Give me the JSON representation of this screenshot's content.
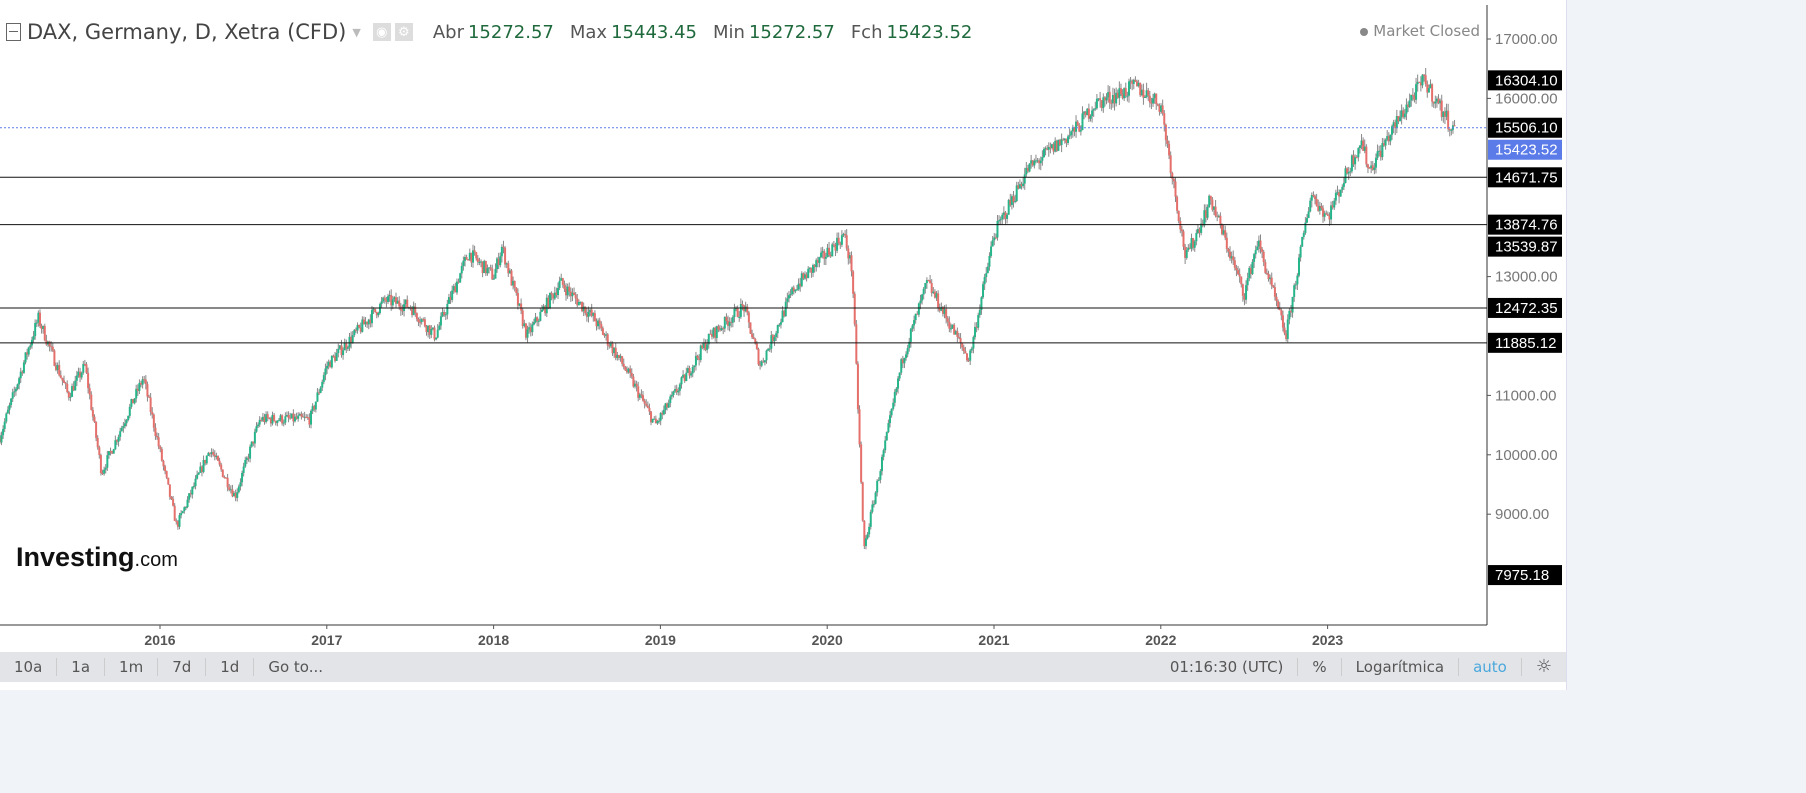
{
  "header": {
    "title": "DAX, Germany, D, Xetra (CFD)",
    "open_label": "Abr",
    "open": "15272.57",
    "high_label": "Max",
    "high": "15443.45",
    "low_label": "Min",
    "low": "15272.57",
    "close_label": "Fch",
    "close": "15423.52",
    "market_status": "Market Closed"
  },
  "logo": {
    "main": "Investing",
    "suffix": ".com"
  },
  "toolbar": {
    "ranges": [
      "10a",
      "1a",
      "1m",
      "7d",
      "1d",
      "Go to..."
    ],
    "time": "01:16:30 (UTC)",
    "percent": "%",
    "log": "Logarítmica",
    "auto": "auto"
  },
  "chart_data": {
    "type": "candlestick",
    "title": "DAX, Germany, D, Xetra (CFD)",
    "x_ticks": [
      "2016",
      "2017",
      "2018",
      "2019",
      "2020",
      "2021",
      "2022",
      "2023"
    ],
    "y_ticks": [
      17000,
      16000,
      13000,
      11000,
      10000,
      9000
    ],
    "ylim": [
      7400,
      17600
    ],
    "xlim": [
      2015.04,
      2023.95
    ],
    "colors": {
      "up": "#26b58a",
      "down": "#e46f6b",
      "current": "#5b7be8"
    },
    "horizontal_lines": [
      14671.75,
      13874.76,
      12472.35,
      11885.12
    ],
    "current_price_line": 15506.1,
    "price_labels": [
      {
        "value": "16304.10",
        "style": "black"
      },
      {
        "value": "15506.10",
        "style": "black"
      },
      {
        "value": "15423.52",
        "style": "blue"
      },
      {
        "value": "14671.75",
        "style": "black"
      },
      {
        "value": "13874.76",
        "style": "black"
      },
      {
        "value": "13539.87",
        "style": "black"
      },
      {
        "value": "12472.35",
        "style": "black"
      },
      {
        "value": "11885.12",
        "style": "black"
      },
      {
        "value": "7975.18",
        "style": "black"
      }
    ],
    "price_path": [
      [
        2015.04,
        10300
      ],
      [
        2015.27,
        12300
      ],
      [
        2015.45,
        11000
      ],
      [
        2015.55,
        11500
      ],
      [
        2015.65,
        9700
      ],
      [
        2015.9,
        11300
      ],
      [
        2016.1,
        8800
      ],
      [
        2016.3,
        10100
      ],
      [
        2016.45,
        9300
      ],
      [
        2016.6,
        10600
      ],
      [
        2016.9,
        10600
      ],
      [
        2017.0,
        11500
      ],
      [
        2017.35,
        12600
      ],
      [
        2017.5,
        12500
      ],
      [
        2017.65,
        12000
      ],
      [
        2017.85,
        13400
      ],
      [
        2018.0,
        13000
      ],
      [
        2018.05,
        13500
      ],
      [
        2018.2,
        12000
      ],
      [
        2018.4,
        12900
      ],
      [
        2018.6,
        12300
      ],
      [
        2018.8,
        11400
      ],
      [
        2018.97,
        10500
      ],
      [
        2019.3,
        12000
      ],
      [
        2019.5,
        12500
      ],
      [
        2019.6,
        11500
      ],
      [
        2019.8,
        12800
      ],
      [
        2020.1,
        13700
      ],
      [
        2020.15,
        13100
      ],
      [
        2020.22,
        8400
      ],
      [
        2020.45,
        11600
      ],
      [
        2020.6,
        12900
      ],
      [
        2020.85,
        11600
      ],
      [
        2021.0,
        13700
      ],
      [
        2021.2,
        14800
      ],
      [
        2021.5,
        15500
      ],
      [
        2021.6,
        15900
      ],
      [
        2021.85,
        16200
      ],
      [
        2022.0,
        15900
      ],
      [
        2022.15,
        13300
      ],
      [
        2022.3,
        14300
      ],
      [
        2022.5,
        12700
      ],
      [
        2022.58,
        13600
      ],
      [
        2022.75,
        12000
      ],
      [
        2022.9,
        14400
      ],
      [
        2023.0,
        14000
      ],
      [
        2023.2,
        15300
      ],
      [
        2023.25,
        14800
      ],
      [
        2023.5,
        16000
      ],
      [
        2023.58,
        16300
      ],
      [
        2023.77,
        15400
      ]
    ]
  }
}
